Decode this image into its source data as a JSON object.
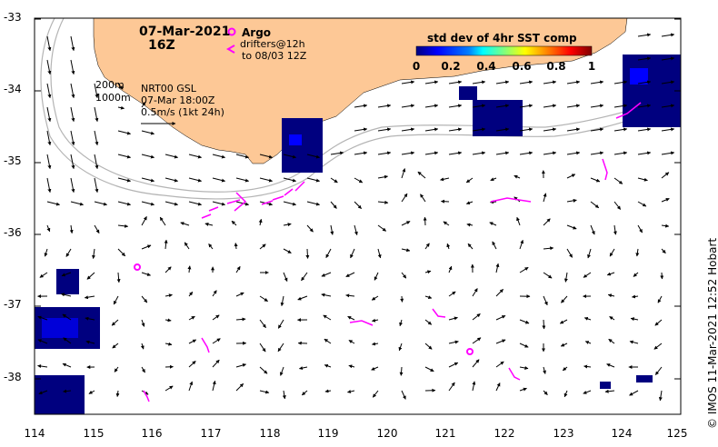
{
  "date_line1": "07-Mar-2021",
  "date_line2": "16Z",
  "legend": {
    "argo_label": "Argo",
    "drifters_line1": "drifters@12h",
    "drifters_line2": "to 08/03 12Z",
    "isobath_200": "200m",
    "isobath_1000": "1000m",
    "product": "NRT00 GSL",
    "product_time": "07-Mar 18:00Z",
    "scale": "0.5m/s (1kt 24h)"
  },
  "colorbar": {
    "title": "std dev of 4hr SST comp",
    "ticks": [
      "0",
      "0.2",
      "0.4",
      "0.6",
      "0.8",
      "1"
    ],
    "colors": [
      "#00007f",
      "#0000ff",
      "#007fff",
      "#00ffff",
      "#7fff7f",
      "#ffff00",
      "#ff7f00",
      "#ff0000",
      "#7f0000"
    ]
  },
  "axes": {
    "lat_ticks": [
      "-33",
      "-34",
      "-35",
      "-36",
      "-37",
      "-38"
    ],
    "lon_ticks": [
      "114",
      "115",
      "116",
      "117",
      "118",
      "119",
      "120",
      "121",
      "122",
      "123",
      "124",
      "125"
    ]
  },
  "colors": {
    "land": "#fdc896",
    "argo": "#ff00ff",
    "drifters": "#ff00ff",
    "isobath": "#b4b4b4"
  },
  "credit": "© IMOS 11-Mar-2021 12:52 Hobart"
}
